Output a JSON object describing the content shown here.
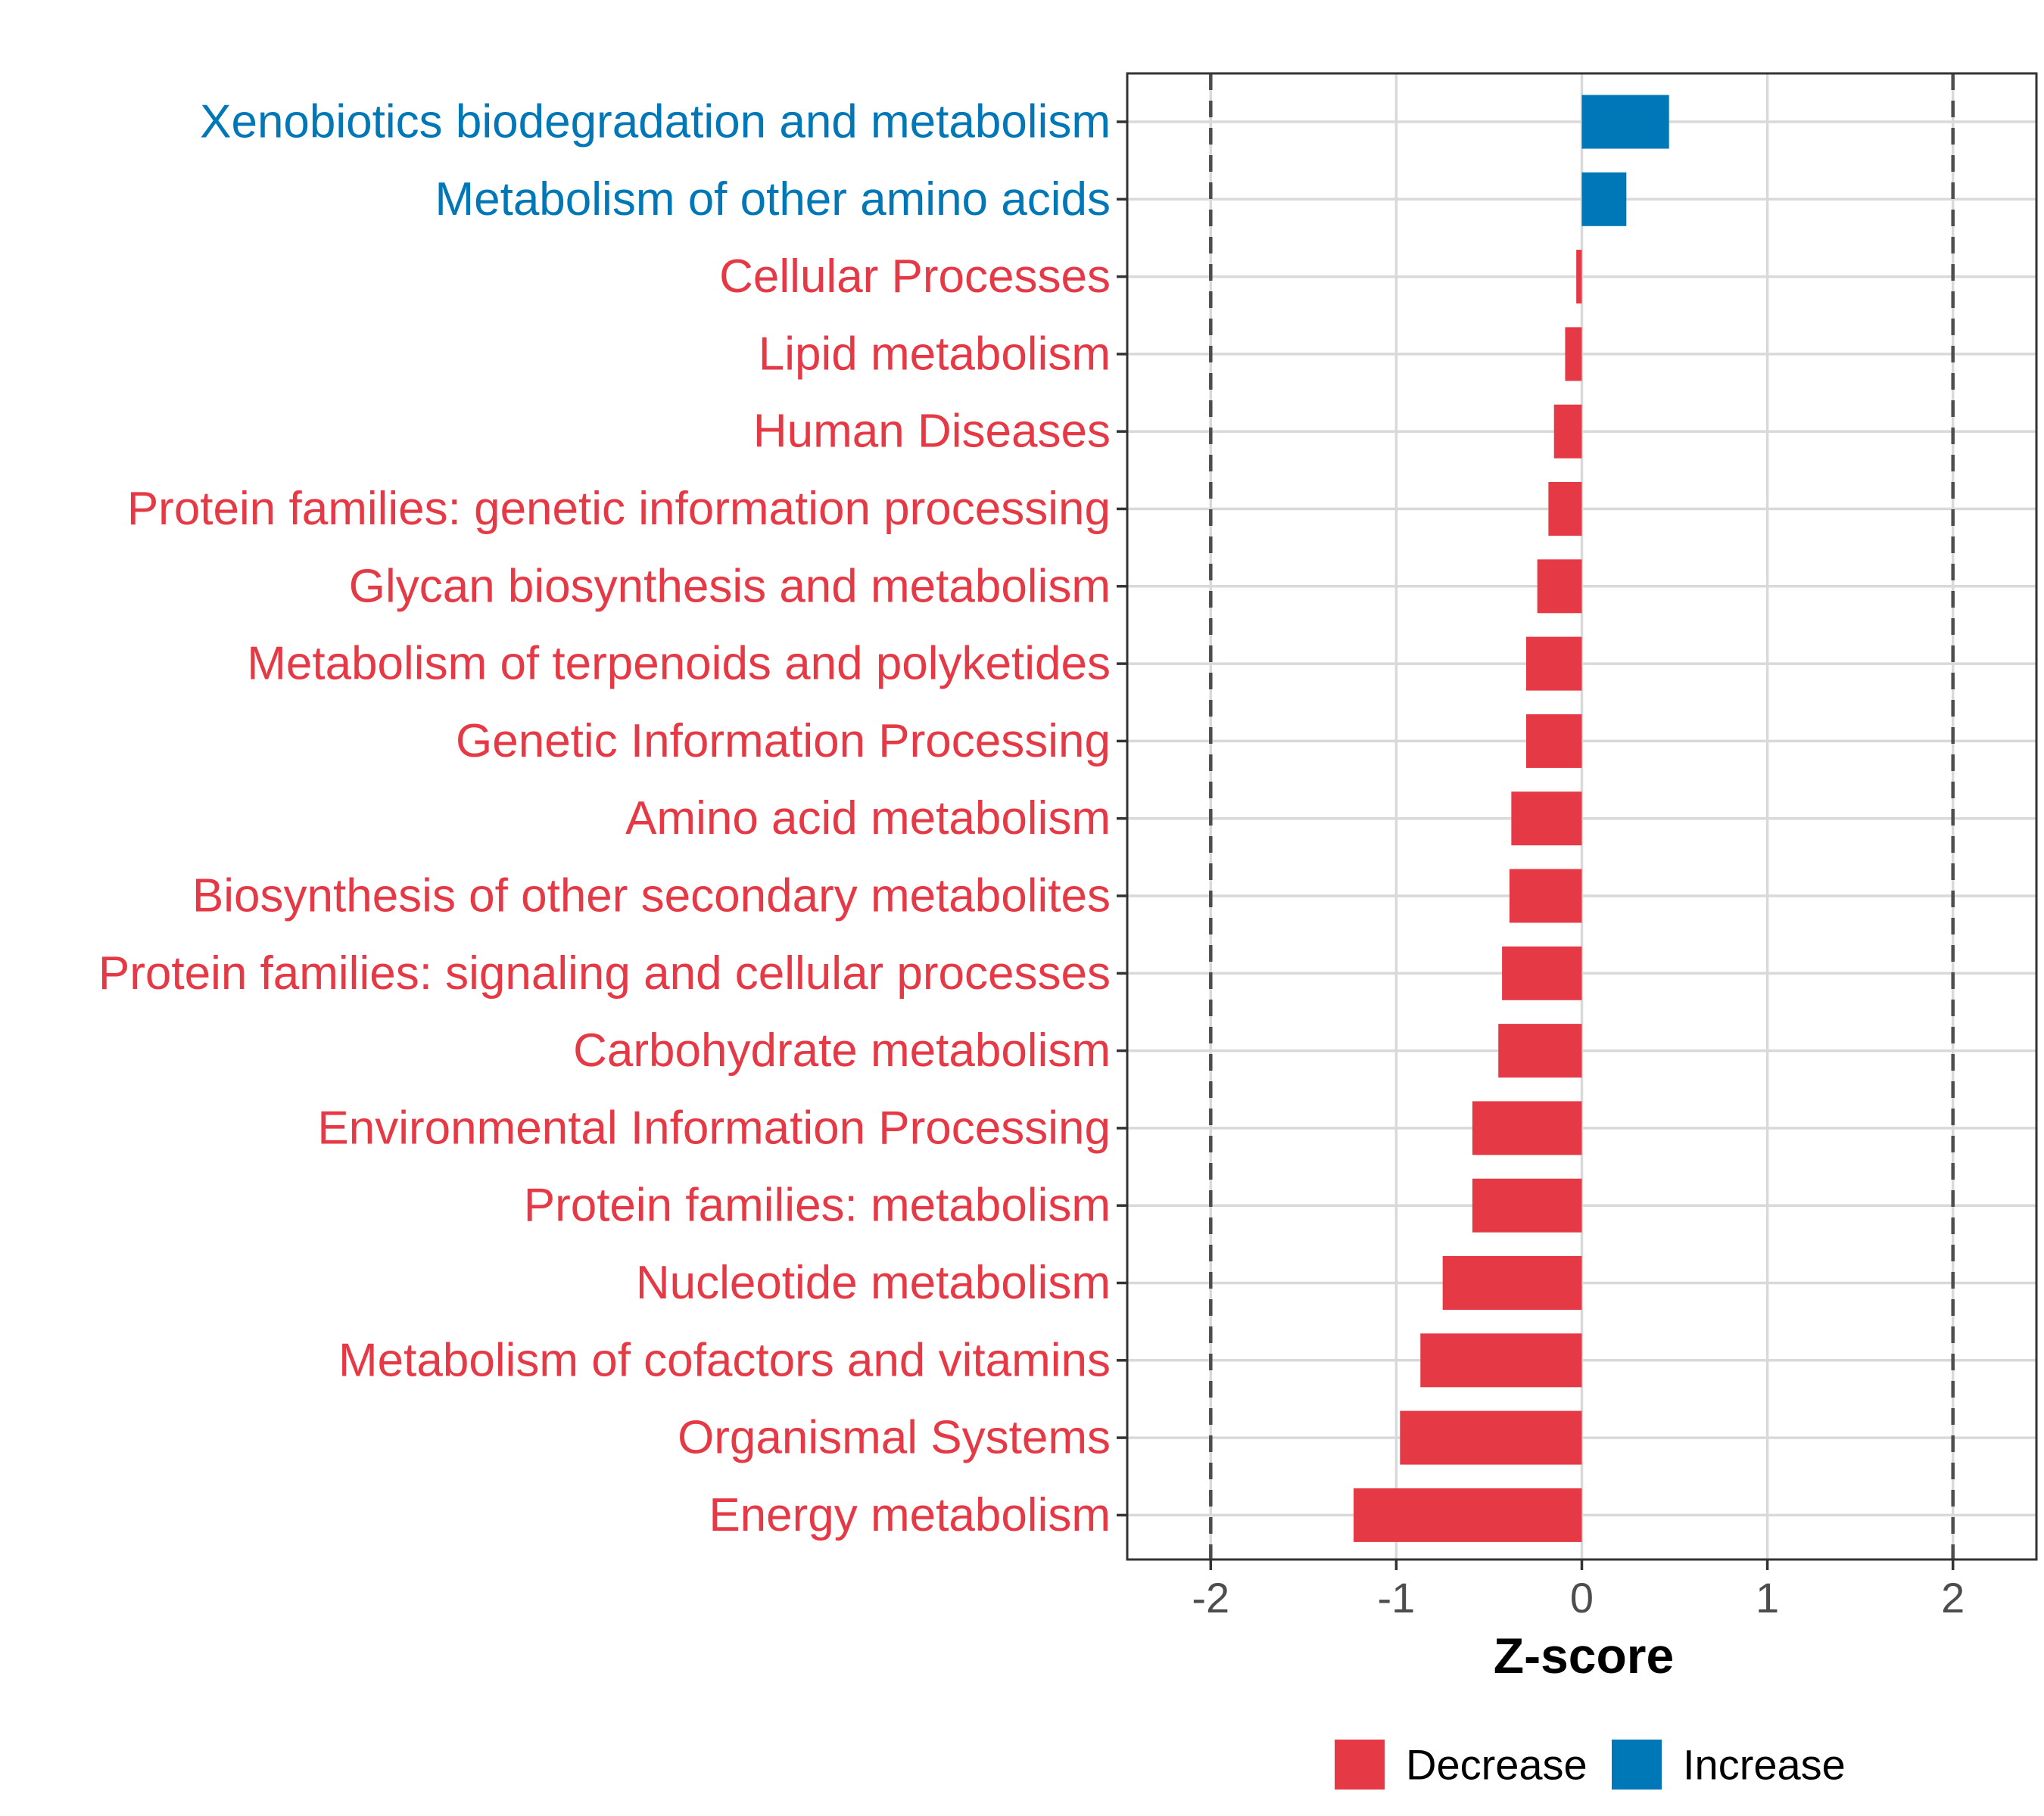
{
  "chart_data": {
    "type": "bar",
    "orientation": "horizontal",
    "title": "",
    "xlabel": "Z-score",
    "ylabel": "",
    "xlim": [
      -2.45,
      2.45
    ],
    "x_ticks": [
      -2,
      -1,
      0,
      1,
      2
    ],
    "x_tick_labels": [
      "-2",
      "-1",
      "0",
      "1",
      "2"
    ],
    "reference_lines": [
      -2,
      2
    ],
    "grid": true,
    "categories": [
      "Xenobiotics biodegradation and metabolism",
      "Metabolism of other amino acids",
      "Cellular Processes",
      "Lipid metabolism",
      "Human Diseases",
      "Protein families: genetic information processing",
      "Glycan biosynthesis and metabolism",
      "Metabolism of terpenoids and polyketides",
      "Genetic Information Processing",
      "Amino acid metabolism",
      "Biosynthesis of other secondary metabolites",
      "Protein families: signaling and cellular processes",
      "Carbohydrate metabolism",
      "Environmental Information Processing",
      "Protein families: metabolism",
      "Nucleotide metabolism",
      "Metabolism of cofactors and vitamins",
      "Organismal Systems",
      "Energy metabolism"
    ],
    "values": [
      0.47,
      0.24,
      -0.03,
      -0.09,
      -0.15,
      -0.18,
      -0.24,
      -0.3,
      -0.3,
      -0.38,
      -0.39,
      -0.43,
      -0.45,
      -0.59,
      -0.59,
      -0.75,
      -0.87,
      -0.98,
      -1.23
    ],
    "groups": [
      "Increase",
      "Increase",
      "Decrease",
      "Decrease",
      "Decrease",
      "Decrease",
      "Decrease",
      "Decrease",
      "Decrease",
      "Decrease",
      "Decrease",
      "Decrease",
      "Decrease",
      "Decrease",
      "Decrease",
      "Decrease",
      "Decrease",
      "Decrease",
      "Decrease"
    ],
    "legend": {
      "position": "bottom",
      "entries": [
        {
          "name": "Decrease",
          "color": "#E63946"
        },
        {
          "name": "Increase",
          "color": "#0077B6"
        }
      ]
    },
    "colors": {
      "Decrease": "#E63946",
      "Increase": "#0077B6"
    }
  }
}
